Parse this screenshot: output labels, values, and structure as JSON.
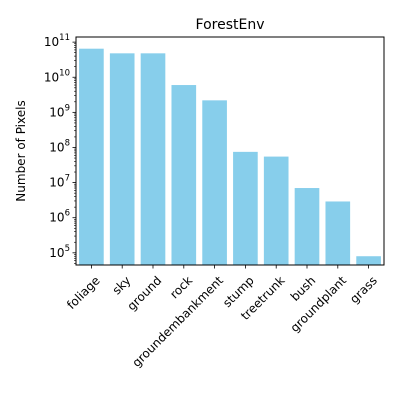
{
  "chart_data": {
    "type": "bar",
    "title": "ForestEnv",
    "xlabel": "",
    "ylabel": "Number of Pixels",
    "yscale": "log",
    "ylim": [
      45000,
      140000000000
    ],
    "grid": false,
    "categories": [
      "foliage",
      "sky",
      "ground",
      "rock",
      "groundembankment",
      "stump",
      "treetrunk",
      "bush",
      "groundplant",
      "grass"
    ],
    "values": [
      65000000000,
      48000000000,
      48000000000,
      6000000000,
      2200000000,
      75000000,
      55000000,
      7000000,
      2900000,
      80000
    ],
    "yticks": [
      {
        "base": "10",
        "exp": "5",
        "value": 100000
      },
      {
        "base": "10",
        "exp": "6",
        "value": 1000000
      },
      {
        "base": "10",
        "exp": "7",
        "value": 10000000
      },
      {
        "base": "10",
        "exp": "8",
        "value": 100000000
      },
      {
        "base": "10",
        "exp": "9",
        "value": 1000000000
      },
      {
        "base": "10",
        "exp": "10",
        "value": 10000000000
      },
      {
        "base": "10",
        "exp": "11",
        "value": 100000000000
      }
    ],
    "colors": {
      "bar": "#87ceeb",
      "axis": "#000000",
      "background": "#ffffff"
    }
  }
}
